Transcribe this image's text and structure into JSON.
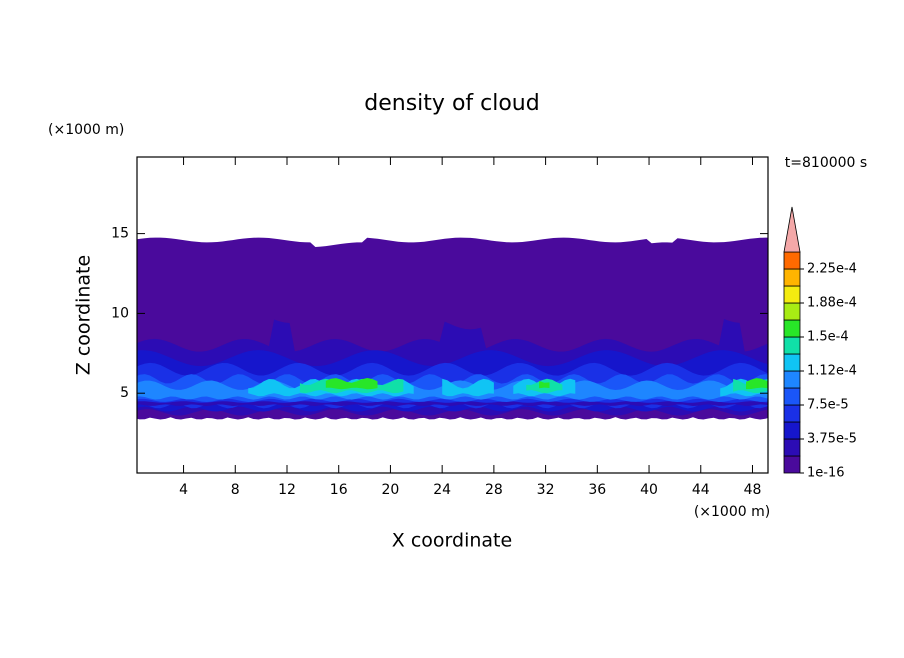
{
  "chart_data": {
    "type": "contour",
    "title": "density of cloud",
    "xlabel": "X coordinate",
    "ylabel": "Z coordinate",
    "x_unit": "(×1000 m)",
    "y_unit": "(×1000 m)",
    "annotation": "t=810000 s",
    "xlim": [
      0.4,
      49.2
    ],
    "xticks": [
      4,
      8,
      12,
      16,
      20,
      24,
      28,
      32,
      36,
      40,
      44,
      48
    ],
    "ylim": [
      0,
      19.8
    ],
    "yticks": [
      5,
      10,
      15
    ],
    "colorbar": {
      "levels": [
        1e-16,
        1.875e-05,
        3.75e-05,
        5.625e-05,
        7.5e-05,
        9.375e-05,
        0.0001125,
        0.00013125,
        0.00015,
        0.00016875,
        0.0001875,
        0.00020625,
        0.000225,
        0.00024375
      ],
      "colors": [
        "#4a0a9c",
        "#2c0cb4",
        "#1616cc",
        "#1a30e6",
        "#1a56f8",
        "#1e86ff",
        "#10c4f4",
        "#10e0a8",
        "#28e628",
        "#a8ec14",
        "#f4ec10",
        "#ffb400",
        "#ff6a00"
      ],
      "extend_color": "#f4a8a8",
      "ticks": [
        {
          "value": 1e-16,
          "label": "1e-16"
        },
        {
          "value": 3.75e-05,
          "label": "3.75e-5"
        },
        {
          "value": 7.5e-05,
          "label": "7.5e-5"
        },
        {
          "value": 0.0001125,
          "label": "1.12e-4"
        },
        {
          "value": 0.00015,
          "label": "1.5e-4"
        },
        {
          "value": 0.0001875,
          "label": "1.88e-4"
        },
        {
          "value": 0.000225,
          "label": "2.25e-4"
        }
      ]
    }
  }
}
